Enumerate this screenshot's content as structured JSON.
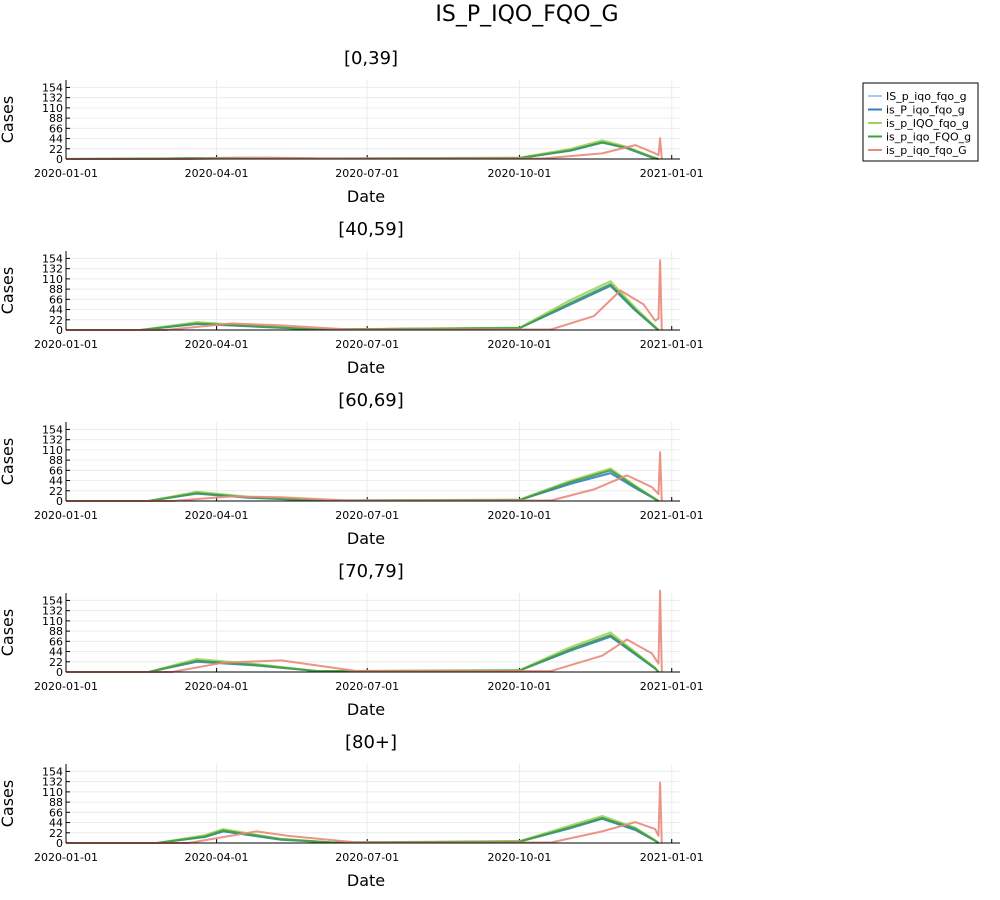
{
  "figure": {
    "title": "IS_P_IQO_FQO_G",
    "legend_position": "top-right, outside plot area",
    "legend_entries": [
      {
        "label": "IS_p_iqo_fqo_g",
        "color": "#a9cbe8"
      },
      {
        "label": "is_P_iqo_fqo_g",
        "color": "#2f7fc1"
      },
      {
        "label": "is_p_IQO_fqo_g",
        "color": "#9fd35d"
      },
      {
        "label": "is_p_iqo_FQO_g",
        "color": "#3f9f3f"
      },
      {
        "label": "is_p_iqo_fqo_G",
        "color": "#e8897b"
      }
    ]
  },
  "chart_data": [
    {
      "type": "line",
      "title": "[0,39]",
      "xlabel": "Date",
      "ylabel": "Cases",
      "x_ticks": [
        "2020-01-01",
        "2020-04-01",
        "2020-07-01",
        "2020-10-01",
        "2021-01-01"
      ],
      "y_ticks": [
        "0",
        "22",
        "44",
        "66",
        "88",
        "110",
        "132",
        "154"
      ],
      "ylim": [
        0,
        170
      ],
      "grid": true,
      "series": [
        {
          "name": "IS_p_iqo_fqo_g",
          "x": [
            "2020-01-01",
            "2020-03-01",
            "2020-04-15",
            "2020-06-01",
            "2020-10-01",
            "2020-11-01",
            "2020-11-20",
            "2020-12-05",
            "2020-12-20",
            "2020-12-24"
          ],
          "y": [
            0,
            1,
            3,
            1,
            2,
            20,
            38,
            25,
            4,
            0
          ]
        },
        {
          "name": "is_P_iqo_fqo_g",
          "x": [
            "2020-01-01",
            "2020-03-01",
            "2020-04-15",
            "2020-06-01",
            "2020-10-01",
            "2020-11-01",
            "2020-11-20",
            "2020-12-05",
            "2020-12-20",
            "2020-12-24"
          ],
          "y": [
            0,
            1,
            2,
            1,
            2,
            18,
            35,
            23,
            3,
            0
          ]
        },
        {
          "name": "is_p_IQO_fqo_g",
          "x": [
            "2020-01-01",
            "2020-03-01",
            "2020-04-15",
            "2020-06-01",
            "2020-10-01",
            "2020-11-01",
            "2020-11-20",
            "2020-12-05",
            "2020-12-20",
            "2020-12-24"
          ],
          "y": [
            0,
            1,
            3,
            1,
            3,
            22,
            40,
            26,
            5,
            0
          ]
        },
        {
          "name": "is_p_iqo_FQO_g",
          "x": [
            "2020-01-01",
            "2020-03-01",
            "2020-04-15",
            "2020-06-01",
            "2020-10-01",
            "2020-11-01",
            "2020-11-20",
            "2020-12-05",
            "2020-12-20",
            "2020-12-24"
          ],
          "y": [
            0,
            1,
            2,
            1,
            2,
            19,
            36,
            24,
            4,
            0
          ]
        },
        {
          "name": "is_p_iqo_fqo_G",
          "x": [
            "2020-01-01",
            "2020-03-15",
            "2020-05-01",
            "2020-06-15",
            "2020-10-15",
            "2020-11-20",
            "2020-12-10",
            "2020-12-22",
            "2020-12-24",
            "2020-12-25",
            "2020-12-26"
          ],
          "y": [
            0,
            0,
            3,
            1,
            1,
            12,
            30,
            12,
            8,
            45,
            0
          ]
        }
      ]
    },
    {
      "type": "line",
      "title": "[40,59]",
      "xlabel": "Date",
      "ylabel": "Cases",
      "x_ticks": [
        "2020-01-01",
        "2020-04-01",
        "2020-07-01",
        "2020-10-01",
        "2021-01-01"
      ],
      "y_ticks": [
        "0",
        "22",
        "44",
        "66",
        "88",
        "110",
        "132",
        "154"
      ],
      "ylim": [
        0,
        170
      ],
      "grid": true,
      "series": [
        {
          "name": "IS_p_iqo_fqo_g",
          "x": [
            "2020-01-01",
            "2020-02-15",
            "2020-03-20",
            "2020-04-20",
            "2020-06-01",
            "2020-10-01",
            "2020-11-01",
            "2020-11-25",
            "2020-12-10",
            "2020-12-22",
            "2020-12-24"
          ],
          "y": [
            0,
            0,
            15,
            9,
            1,
            4,
            60,
            100,
            45,
            6,
            0
          ]
        },
        {
          "name": "is_P_iqo_fqo_g",
          "x": [
            "2020-01-01",
            "2020-02-15",
            "2020-03-20",
            "2020-04-20",
            "2020-06-01",
            "2020-10-01",
            "2020-11-01",
            "2020-11-25",
            "2020-12-10",
            "2020-12-22",
            "2020-12-24"
          ],
          "y": [
            0,
            0,
            13,
            8,
            1,
            4,
            55,
            95,
            42,
            5,
            0
          ]
        },
        {
          "name": "is_p_IQO_fqo_g",
          "x": [
            "2020-01-01",
            "2020-02-15",
            "2020-03-20",
            "2020-04-20",
            "2020-06-01",
            "2020-10-01",
            "2020-11-01",
            "2020-11-25",
            "2020-12-10",
            "2020-12-22",
            "2020-12-24"
          ],
          "y": [
            0,
            0,
            17,
            10,
            1,
            5,
            65,
            105,
            48,
            7,
            0
          ]
        },
        {
          "name": "is_p_iqo_FQO_g",
          "x": [
            "2020-01-01",
            "2020-02-15",
            "2020-03-20",
            "2020-04-20",
            "2020-06-01",
            "2020-10-01",
            "2020-11-01",
            "2020-11-25",
            "2020-12-10",
            "2020-12-22",
            "2020-12-24"
          ],
          "y": [
            0,
            0,
            14,
            9,
            1,
            4,
            58,
            98,
            44,
            6,
            0
          ]
        },
        {
          "name": "is_p_iqo_fqo_G",
          "x": [
            "2020-01-01",
            "2020-03-01",
            "2020-04-10",
            "2020-05-10",
            "2020-06-20",
            "2020-10-20",
            "2020-11-15",
            "2020-12-01",
            "2020-12-15",
            "2020-12-22",
            "2020-12-24",
            "2020-12-25",
            "2020-12-26"
          ],
          "y": [
            0,
            0,
            14,
            10,
            1,
            1,
            30,
            85,
            55,
            20,
            25,
            150,
            0
          ]
        }
      ]
    },
    {
      "type": "line",
      "title": "[60,69]",
      "xlabel": "Date",
      "ylabel": "Cases",
      "x_ticks": [
        "2020-01-01",
        "2020-04-01",
        "2020-07-01",
        "2020-10-01",
        "2021-01-01"
      ],
      "y_ticks": [
        "0",
        "22",
        "44",
        "66",
        "88",
        "110",
        "132",
        "154"
      ],
      "ylim": [
        0,
        170
      ],
      "grid": true,
      "series": [
        {
          "name": "IS_p_iqo_fqo_g",
          "x": [
            "2020-01-01",
            "2020-02-20",
            "2020-03-20",
            "2020-04-20",
            "2020-06-01",
            "2020-10-01",
            "2020-11-01",
            "2020-11-25",
            "2020-12-10",
            "2020-12-22",
            "2020-12-24"
          ],
          "y": [
            0,
            0,
            18,
            8,
            1,
            2,
            40,
            65,
            30,
            4,
            0
          ]
        },
        {
          "name": "is_P_iqo_fqo_g",
          "x": [
            "2020-01-01",
            "2020-02-20",
            "2020-03-20",
            "2020-04-20",
            "2020-06-01",
            "2020-10-01",
            "2020-11-01",
            "2020-11-25",
            "2020-12-10",
            "2020-12-22",
            "2020-12-24"
          ],
          "y": [
            0,
            0,
            16,
            7,
            1,
            2,
            37,
            60,
            28,
            4,
            0
          ]
        },
        {
          "name": "is_p_IQO_fqo_g",
          "x": [
            "2020-01-01",
            "2020-02-20",
            "2020-03-20",
            "2020-04-20",
            "2020-06-01",
            "2020-10-01",
            "2020-11-01",
            "2020-11-25",
            "2020-12-10",
            "2020-12-22",
            "2020-12-24"
          ],
          "y": [
            0,
            0,
            20,
            9,
            1,
            3,
            44,
            70,
            33,
            5,
            0
          ]
        },
        {
          "name": "is_p_iqo_FQO_g",
          "x": [
            "2020-01-01",
            "2020-02-20",
            "2020-03-20",
            "2020-04-20",
            "2020-06-01",
            "2020-10-01",
            "2020-11-01",
            "2020-11-25",
            "2020-12-10",
            "2020-12-22",
            "2020-12-24"
          ],
          "y": [
            0,
            0,
            17,
            8,
            1,
            2,
            41,
            66,
            31,
            4,
            0
          ]
        },
        {
          "name": "is_p_iqo_fqo_G",
          "x": [
            "2020-01-01",
            "2020-03-05",
            "2020-04-10",
            "2020-05-10",
            "2020-06-20",
            "2020-10-20",
            "2020-11-15",
            "2020-12-05",
            "2020-12-20",
            "2020-12-24",
            "2020-12-25",
            "2020-12-26"
          ],
          "y": [
            0,
            0,
            10,
            8,
            1,
            1,
            25,
            55,
            30,
            15,
            105,
            0
          ]
        }
      ]
    },
    {
      "type": "line",
      "title": "[70,79]",
      "xlabel": "Date",
      "ylabel": "Cases",
      "x_ticks": [
        "2020-01-01",
        "2020-04-01",
        "2020-07-01",
        "2020-10-01",
        "2021-01-01"
      ],
      "y_ticks": [
        "0",
        "22",
        "44",
        "66",
        "88",
        "110",
        "132",
        "154"
      ],
      "ylim": [
        0,
        170
      ],
      "grid": true,
      "series": [
        {
          "name": "IS_p_iqo_fqo_g",
          "x": [
            "2020-01-01",
            "2020-02-20",
            "2020-03-20",
            "2020-04-25",
            "2020-06-01",
            "2020-10-01",
            "2020-11-01",
            "2020-11-25",
            "2020-12-10",
            "2020-12-22",
            "2020-12-24"
          ],
          "y": [
            0,
            0,
            25,
            15,
            2,
            3,
            50,
            80,
            40,
            8,
            0
          ]
        },
        {
          "name": "is_P_iqo_fqo_g",
          "x": [
            "2020-01-01",
            "2020-02-20",
            "2020-03-20",
            "2020-04-25",
            "2020-06-01",
            "2020-10-01",
            "2020-11-01",
            "2020-11-25",
            "2020-12-10",
            "2020-12-22",
            "2020-12-24"
          ],
          "y": [
            0,
            0,
            22,
            14,
            2,
            3,
            46,
            76,
            38,
            7,
            0
          ]
        },
        {
          "name": "is_p_IQO_fqo_g",
          "x": [
            "2020-01-01",
            "2020-02-20",
            "2020-03-20",
            "2020-04-25",
            "2020-06-01",
            "2020-10-01",
            "2020-11-01",
            "2020-11-25",
            "2020-12-10",
            "2020-12-22",
            "2020-12-24"
          ],
          "y": [
            0,
            0,
            28,
            17,
            2,
            4,
            54,
            85,
            43,
            9,
            0
          ]
        },
        {
          "name": "is_p_iqo_FQO_g",
          "x": [
            "2020-01-01",
            "2020-02-20",
            "2020-03-20",
            "2020-04-25",
            "2020-06-01",
            "2020-10-01",
            "2020-11-01",
            "2020-11-25",
            "2020-12-10",
            "2020-12-22",
            "2020-12-24"
          ],
          "y": [
            0,
            0,
            24,
            15,
            2,
            3,
            49,
            79,
            40,
            8,
            0
          ]
        },
        {
          "name": "is_p_iqo_fqo_G",
          "x": [
            "2020-01-01",
            "2020-03-05",
            "2020-04-05",
            "2020-05-10",
            "2020-06-25",
            "2020-10-20",
            "2020-11-20",
            "2020-12-05",
            "2020-12-20",
            "2020-12-24",
            "2020-12-25",
            "2020-12-26"
          ],
          "y": [
            0,
            0,
            20,
            25,
            2,
            2,
            35,
            70,
            40,
            18,
            175,
            0
          ]
        }
      ]
    },
    {
      "type": "line",
      "title": "[80+]",
      "xlabel": "Date",
      "ylabel": "Cases",
      "x_ticks": [
        "2020-01-01",
        "2020-04-01",
        "2020-07-01",
        "2020-10-01",
        "2021-01-01"
      ],
      "y_ticks": [
        "0",
        "22",
        "44",
        "66",
        "88",
        "110",
        "132",
        "154"
      ],
      "ylim": [
        0,
        170
      ],
      "grid": true,
      "series": [
        {
          "name": "IS_p_iqo_fqo_g",
          "x": [
            "2020-01-01",
            "2020-02-25",
            "2020-03-25",
            "2020-04-05",
            "2020-05-10",
            "2020-06-10",
            "2020-10-01",
            "2020-11-01",
            "2020-11-20",
            "2020-12-10",
            "2020-12-22",
            "2020-12-24"
          ],
          "y": [
            0,
            0,
            15,
            28,
            8,
            1,
            3,
            35,
            55,
            30,
            5,
            0
          ]
        },
        {
          "name": "is_P_iqo_fqo_g",
          "x": [
            "2020-01-01",
            "2020-02-25",
            "2020-03-25",
            "2020-04-05",
            "2020-05-10",
            "2020-06-10",
            "2020-10-01",
            "2020-11-01",
            "2020-11-20",
            "2020-12-10",
            "2020-12-22",
            "2020-12-24"
          ],
          "y": [
            0,
            0,
            13,
            25,
            7,
            1,
            3,
            32,
            52,
            28,
            5,
            0
          ]
        },
        {
          "name": "is_p_IQO_fqo_g",
          "x": [
            "2020-01-01",
            "2020-02-25",
            "2020-03-25",
            "2020-04-05",
            "2020-05-10",
            "2020-06-10",
            "2020-10-01",
            "2020-11-01",
            "2020-11-20",
            "2020-12-10",
            "2020-12-22",
            "2020-12-24"
          ],
          "y": [
            0,
            0,
            17,
            30,
            9,
            1,
            4,
            38,
            58,
            33,
            6,
            0
          ]
        },
        {
          "name": "is_p_iqo_FQO_g",
          "x": [
            "2020-01-01",
            "2020-02-25",
            "2020-03-25",
            "2020-04-05",
            "2020-05-10",
            "2020-06-10",
            "2020-10-01",
            "2020-11-01",
            "2020-11-20",
            "2020-12-10",
            "2020-12-22",
            "2020-12-24"
          ],
          "y": [
            0,
            0,
            14,
            27,
            8,
            1,
            3,
            34,
            54,
            31,
            5,
            0
          ]
        },
        {
          "name": "is_p_iqo_fqo_G",
          "x": [
            "2020-01-01",
            "2020-03-15",
            "2020-04-25",
            "2020-05-15",
            "2020-06-25",
            "2020-10-20",
            "2020-11-20",
            "2020-12-10",
            "2020-12-22",
            "2020-12-24",
            "2020-12-25",
            "2020-12-26"
          ],
          "y": [
            0,
            0,
            25,
            15,
            1,
            1,
            25,
            45,
            30,
            15,
            130,
            0
          ]
        }
      ]
    }
  ]
}
